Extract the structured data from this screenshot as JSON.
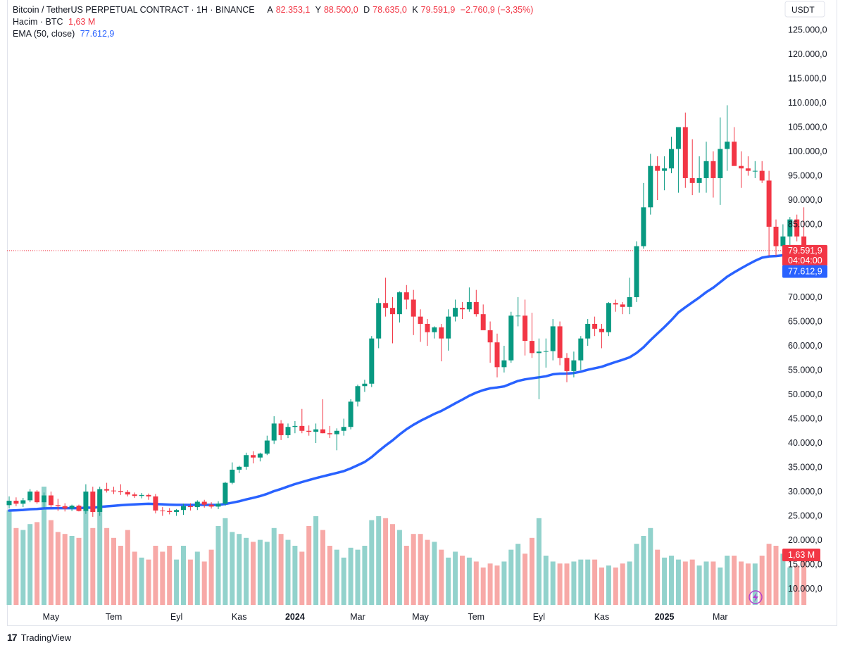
{
  "header": {
    "symbol": "Bitcoin / TetherUS PERPETUAL CONTRACT · 1H · BINANCE",
    "ohlc": [
      {
        "label": "A",
        "value": "82.353,1"
      },
      {
        "label": "Y",
        "value": "88.500,0"
      },
      {
        "label": "D",
        "value": "78.635,0"
      },
      {
        "label": "K",
        "value": "79.591,9"
      }
    ],
    "change": "−2.760,9 (−3,35%)",
    "volume_label": "Hacim · BTC",
    "volume_value": "1,63 M",
    "ema_label": "EMA (50, close)",
    "ema_value": "77.612,9"
  },
  "footer": {
    "brand": "TradingView",
    "logo": "17"
  },
  "colors": {
    "up": "#089981",
    "down": "#f23645",
    "ema": "#2962ff",
    "vol_up": "#92d2cc",
    "vol_down": "#f7a9a7"
  },
  "chart_data": {
    "type": "candlestick",
    "currency_label": "USDT",
    "y_axis_ticks": [
      125000,
      120000,
      115000,
      110000,
      105000,
      100000,
      95000,
      90000,
      85000,
      80000,
      75000,
      70000,
      65000,
      60000,
      55000,
      50000,
      45000,
      40000,
      35000,
      30000,
      25000,
      20000,
      15000,
      10000
    ],
    "y_axis_labels": [
      "125.000,0",
      "120.000,0",
      "115.000,0",
      "110.000,0",
      "105.000,0",
      "100.000,0",
      "95.000,0",
      "90.000,0",
      "85.000,0",
      "80.000,0",
      "75.000,0",
      "70.000,0",
      "65.000,0",
      "60.000,0",
      "55.000,0",
      "50.000,0",
      "45.000,0",
      "40.000,0",
      "35.000,0",
      "30.000,0",
      "25.000,0",
      "20.000,0",
      "15.000,0",
      "10.000,0"
    ],
    "x_axis_labels": [
      {
        "label": "May",
        "bar": 6,
        "bold": false
      },
      {
        "label": "Tem",
        "bar": 15,
        "bold": false
      },
      {
        "label": "Eyl",
        "bar": 24,
        "bold": false
      },
      {
        "label": "Kas",
        "bar": 33,
        "bold": false
      },
      {
        "label": "2024",
        "bar": 41,
        "bold": true
      },
      {
        "label": "Mar",
        "bar": 50,
        "bold": false
      },
      {
        "label": "May",
        "bar": 59,
        "bold": false
      },
      {
        "label": "Tem",
        "bar": 67,
        "bold": false
      },
      {
        "label": "Eyl",
        "bar": 76,
        "bold": false
      },
      {
        "label": "Kas",
        "bar": 85,
        "bold": false
      },
      {
        "label": "2025",
        "bar": 94,
        "bold": true
      },
      {
        "label": "Mar",
        "bar": 102,
        "bold": false
      }
    ],
    "last_price": {
      "value": 79591.9,
      "label": "79.591,9",
      "countdown": "04:04:00"
    },
    "ema_last": {
      "value": 77612.9,
      "label": "77.612,9"
    },
    "volume_last": {
      "value": 17000,
      "label": "1,63 M"
    },
    "candles": [
      {
        "o": 27200,
        "h": 29000,
        "l": 26500,
        "c": 28100,
        "v": 29000
      },
      {
        "o": 28100,
        "h": 28800,
        "l": 27000,
        "c": 27500,
        "v": 24500
      },
      {
        "o": 27500,
        "h": 28700,
        "l": 26800,
        "c": 28200,
        "v": 24000
      },
      {
        "o": 28200,
        "h": 30500,
        "l": 27800,
        "c": 30000,
        "v": 25500
      },
      {
        "o": 30000,
        "h": 30300,
        "l": 27500,
        "c": 27800,
        "v": 26000
      },
      {
        "o": 27800,
        "h": 29800,
        "l": 26500,
        "c": 29200,
        "v": 35000
      },
      {
        "o": 29200,
        "h": 30000,
        "l": 26700,
        "c": 27200,
        "v": 26500
      },
      {
        "o": 27200,
        "h": 28500,
        "l": 26000,
        "c": 27000,
        "v": 23500
      },
      {
        "o": 27000,
        "h": 27600,
        "l": 25900,
        "c": 26500,
        "v": 23000
      },
      {
        "o": 26500,
        "h": 27300,
        "l": 26000,
        "c": 27100,
        "v": 22500
      },
      {
        "o": 27100,
        "h": 27300,
        "l": 25900,
        "c": 26000,
        "v": 22000
      },
      {
        "o": 26000,
        "h": 31500,
        "l": 25400,
        "c": 30000,
        "v": 29000
      },
      {
        "o": 30000,
        "h": 31000,
        "l": 24800,
        "c": 25800,
        "v": 24500
      },
      {
        "o": 25800,
        "h": 31000,
        "l": 25000,
        "c": 30500,
        "v": 33000
      },
      {
        "o": 30500,
        "h": 31800,
        "l": 29800,
        "c": 30200,
        "v": 24500
      },
      {
        "o": 30200,
        "h": 31000,
        "l": 29500,
        "c": 30100,
        "v": 22000
      },
      {
        "o": 30100,
        "h": 31500,
        "l": 29300,
        "c": 29900,
        "v": 20000
      },
      {
        "o": 29900,
        "h": 30300,
        "l": 29000,
        "c": 29400,
        "v": 24000
      },
      {
        "o": 29400,
        "h": 29800,
        "l": 28700,
        "c": 29100,
        "v": 18500
      },
      {
        "o": 29100,
        "h": 29700,
        "l": 28600,
        "c": 29300,
        "v": 17000
      },
      {
        "o": 29300,
        "h": 29600,
        "l": 28300,
        "c": 29000,
        "v": 16500
      },
      {
        "o": 29000,
        "h": 29500,
        "l": 25500,
        "c": 26100,
        "v": 20000
      },
      {
        "o": 26100,
        "h": 26800,
        "l": 25000,
        "c": 26000,
        "v": 18500
      },
      {
        "o": 26000,
        "h": 26600,
        "l": 25300,
        "c": 25800,
        "v": 20000
      },
      {
        "o": 25800,
        "h": 26400,
        "l": 25000,
        "c": 26200,
        "v": 16500
      },
      {
        "o": 26200,
        "h": 27500,
        "l": 25200,
        "c": 27000,
        "v": 20000
      },
      {
        "o": 27000,
        "h": 27600,
        "l": 26100,
        "c": 26800,
        "v": 16500
      },
      {
        "o": 26800,
        "h": 28200,
        "l": 26200,
        "c": 27900,
        "v": 18500
      },
      {
        "o": 27900,
        "h": 28300,
        "l": 26700,
        "c": 27300,
        "v": 16000
      },
      {
        "o": 27300,
        "h": 27800,
        "l": 26500,
        "c": 26900,
        "v": 19000
      },
      {
        "o": 26900,
        "h": 28000,
        "l": 26400,
        "c": 27500,
        "v": 25000
      },
      {
        "o": 27500,
        "h": 32000,
        "l": 27100,
        "c": 31800,
        "v": 27000
      },
      {
        "o": 31800,
        "h": 36000,
        "l": 31500,
        "c": 34500,
        "v": 23500
      },
      {
        "o": 34500,
        "h": 35300,
        "l": 33800,
        "c": 35100,
        "v": 23000
      },
      {
        "o": 35100,
        "h": 38000,
        "l": 34500,
        "c": 37500,
        "v": 22000
      },
      {
        "o": 37500,
        "h": 38300,
        "l": 35800,
        "c": 37000,
        "v": 21000
      },
      {
        "o": 37000,
        "h": 38000,
        "l": 36200,
        "c": 37800,
        "v": 21500
      },
      {
        "o": 37800,
        "h": 41500,
        "l": 37500,
        "c": 40500,
        "v": 21000
      },
      {
        "o": 40500,
        "h": 45500,
        "l": 39800,
        "c": 44000,
        "v": 24500
      },
      {
        "o": 44000,
        "h": 44700,
        "l": 40600,
        "c": 41600,
        "v": 23000
      },
      {
        "o": 41600,
        "h": 44000,
        "l": 41000,
        "c": 43300,
        "v": 21500
      },
      {
        "o": 43300,
        "h": 44500,
        "l": 42000,
        "c": 43500,
        "v": 20000
      },
      {
        "o": 43500,
        "h": 47000,
        "l": 42000,
        "c": 42500,
        "v": 18500
      },
      {
        "o": 42500,
        "h": 43600,
        "l": 41500,
        "c": 42300,
        "v": 25000
      },
      {
        "o": 42300,
        "h": 44000,
        "l": 40000,
        "c": 42800,
        "v": 27500
      },
      {
        "o": 42800,
        "h": 49000,
        "l": 42000,
        "c": 42000,
        "v": 24000
      },
      {
        "o": 42000,
        "h": 43500,
        "l": 41000,
        "c": 41800,
        "v": 20000
      },
      {
        "o": 41800,
        "h": 43000,
        "l": 38500,
        "c": 42500,
        "v": 19000
      },
      {
        "o": 42500,
        "h": 45000,
        "l": 41500,
        "c": 43300,
        "v": 17000
      },
      {
        "o": 43300,
        "h": 49000,
        "l": 42800,
        "c": 48500,
        "v": 19500
      },
      {
        "o": 48500,
        "h": 52000,
        "l": 47500,
        "c": 51700,
        "v": 19000
      },
      {
        "o": 51700,
        "h": 53000,
        "l": 50500,
        "c": 52200,
        "v": 20000
      },
      {
        "o": 52200,
        "h": 62000,
        "l": 51500,
        "c": 61500,
        "v": 26500
      },
      {
        "o": 61500,
        "h": 69800,
        "l": 59500,
        "c": 68800,
        "v": 27500
      },
      {
        "o": 68800,
        "h": 74000,
        "l": 66000,
        "c": 67800,
        "v": 27000
      },
      {
        "o": 67800,
        "h": 70000,
        "l": 60500,
        "c": 66500,
        "v": 25500
      },
      {
        "o": 66500,
        "h": 71200,
        "l": 64800,
        "c": 71000,
        "v": 24000
      },
      {
        "o": 71000,
        "h": 72500,
        "l": 67500,
        "c": 69500,
        "v": 20000
      },
      {
        "o": 69500,
        "h": 71500,
        "l": 62200,
        "c": 66000,
        "v": 23000
      },
      {
        "o": 66000,
        "h": 67500,
        "l": 60800,
        "c": 64500,
        "v": 23000
      },
      {
        "o": 64500,
        "h": 65500,
        "l": 60000,
        "c": 62800,
        "v": 21500
      },
      {
        "o": 62800,
        "h": 64000,
        "l": 61500,
        "c": 63800,
        "v": 21000
      },
      {
        "o": 63800,
        "h": 64500,
        "l": 56800,
        "c": 61500,
        "v": 19000
      },
      {
        "o": 61500,
        "h": 67500,
        "l": 59000,
        "c": 66000,
        "v": 17000
      },
      {
        "o": 66000,
        "h": 69500,
        "l": 65000,
        "c": 67800,
        "v": 18500
      },
      {
        "o": 67800,
        "h": 69000,
        "l": 65500,
        "c": 67500,
        "v": 17500
      },
      {
        "o": 67500,
        "h": 72000,
        "l": 67000,
        "c": 69000,
        "v": 17000
      },
      {
        "o": 69000,
        "h": 71500,
        "l": 66000,
        "c": 66500,
        "v": 16000
      },
      {
        "o": 66500,
        "h": 68500,
        "l": 63500,
        "c": 63200,
        "v": 14500
      },
      {
        "o": 63200,
        "h": 65000,
        "l": 56500,
        "c": 60700,
        "v": 15500
      },
      {
        "o": 60700,
        "h": 62500,
        "l": 53500,
        "c": 55600,
        "v": 15000
      },
      {
        "o": 55600,
        "h": 60000,
        "l": 54500,
        "c": 57000,
        "v": 16000
      },
      {
        "o": 57000,
        "h": 67000,
        "l": 56500,
        "c": 66200,
        "v": 19000
      },
      {
        "o": 66200,
        "h": 70000,
        "l": 64000,
        "c": 66200,
        "v": 20500
      },
      {
        "o": 66200,
        "h": 69500,
        "l": 58000,
        "c": 61000,
        "v": 18000
      },
      {
        "o": 61000,
        "h": 66800,
        "l": 57500,
        "c": 58500,
        "v": 22000
      },
      {
        "o": 58500,
        "h": 61500,
        "l": 49000,
        "c": 58800,
        "v": 27000
      },
      {
        "o": 58800,
        "h": 61500,
        "l": 55500,
        "c": 58900,
        "v": 17500
      },
      {
        "o": 58900,
        "h": 65500,
        "l": 57000,
        "c": 64000,
        "v": 16000
      },
      {
        "o": 64000,
        "h": 65000,
        "l": 56000,
        "c": 57500,
        "v": 15500
      },
      {
        "o": 57500,
        "h": 58500,
        "l": 52500,
        "c": 54800,
        "v": 15500
      },
      {
        "o": 54800,
        "h": 58800,
        "l": 53500,
        "c": 57000,
        "v": 16000
      },
      {
        "o": 57000,
        "h": 62000,
        "l": 55000,
        "c": 61500,
        "v": 16500
      },
      {
        "o": 61500,
        "h": 65500,
        "l": 60000,
        "c": 64500,
        "v": 16500
      },
      {
        "o": 64500,
        "h": 66000,
        "l": 62000,
        "c": 63500,
        "v": 16500
      },
      {
        "o": 63500,
        "h": 64500,
        "l": 59500,
        "c": 62800,
        "v": 14500
      },
      {
        "o": 62800,
        "h": 69000,
        "l": 62000,
        "c": 68800,
        "v": 15000
      },
      {
        "o": 68800,
        "h": 69500,
        "l": 67000,
        "c": 68500,
        "v": 14500
      },
      {
        "o": 68500,
        "h": 69000,
        "l": 66500,
        "c": 68000,
        "v": 15500
      },
      {
        "o": 68000,
        "h": 74000,
        "l": 66500,
        "c": 70000,
        "v": 16000
      },
      {
        "o": 70000,
        "h": 81500,
        "l": 69000,
        "c": 80500,
        "v": 20500
      },
      {
        "o": 80500,
        "h": 93500,
        "l": 80000,
        "c": 88500,
        "v": 22500
      },
      {
        "o": 88500,
        "h": 99500,
        "l": 87000,
        "c": 97000,
        "v": 24500
      },
      {
        "o": 97000,
        "h": 99000,
        "l": 90000,
        "c": 96000,
        "v": 19000
      },
      {
        "o": 96000,
        "h": 99000,
        "l": 92000,
        "c": 96500,
        "v": 17000
      },
      {
        "o": 96500,
        "h": 103000,
        "l": 95500,
        "c": 100500,
        "v": 17500
      },
      {
        "o": 100500,
        "h": 105000,
        "l": 91500,
        "c": 105000,
        "v": 16500
      },
      {
        "o": 105000,
        "h": 108000,
        "l": 92500,
        "c": 94500,
        "v": 16000
      },
      {
        "o": 94500,
        "h": 102500,
        "l": 91000,
        "c": 93500,
        "v": 16500
      },
      {
        "o": 93500,
        "h": 99000,
        "l": 91500,
        "c": 94500,
        "v": 15000
      },
      {
        "o": 94500,
        "h": 102000,
        "l": 91500,
        "c": 98000,
        "v": 16000
      },
      {
        "o": 98000,
        "h": 100000,
        "l": 90500,
        "c": 94500,
        "v": 16000
      },
      {
        "o": 94500,
        "h": 107000,
        "l": 89000,
        "c": 100500,
        "v": 14500
      },
      {
        "o": 100500,
        "h": 109500,
        "l": 96000,
        "c": 102000,
        "v": 17500
      },
      {
        "o": 102000,
        "h": 105000,
        "l": 97500,
        "c": 97000,
        "v": 17500
      },
      {
        "o": 97000,
        "h": 100000,
        "l": 92500,
        "c": 96500,
        "v": 16000
      },
      {
        "o": 96500,
        "h": 99000,
        "l": 95000,
        "c": 96000,
        "v": 15500
      },
      {
        "o": 96000,
        "h": 98000,
        "l": 94500,
        "c": 96000,
        "v": 15500
      },
      {
        "o": 96000,
        "h": 98000,
        "l": 93500,
        "c": 94000,
        "v": 17500
      },
      {
        "o": 94000,
        "h": 96000,
        "l": 78500,
        "c": 84500,
        "v": 20500
      },
      {
        "o": 84500,
        "h": 86000,
        "l": 78500,
        "c": 80500,
        "v": 20000
      },
      {
        "o": 80500,
        "h": 85000,
        "l": 77500,
        "c": 82500,
        "v": 18000
      },
      {
        "o": 82500,
        "h": 86500,
        "l": 80500,
        "c": 86000,
        "v": 14500
      },
      {
        "o": 86000,
        "h": 87000,
        "l": 81500,
        "c": 82500,
        "v": 15000
      },
      {
        "o": 82500,
        "h": 88500,
        "l": 78600,
        "c": 79600,
        "v": 16800
      }
    ]
  }
}
